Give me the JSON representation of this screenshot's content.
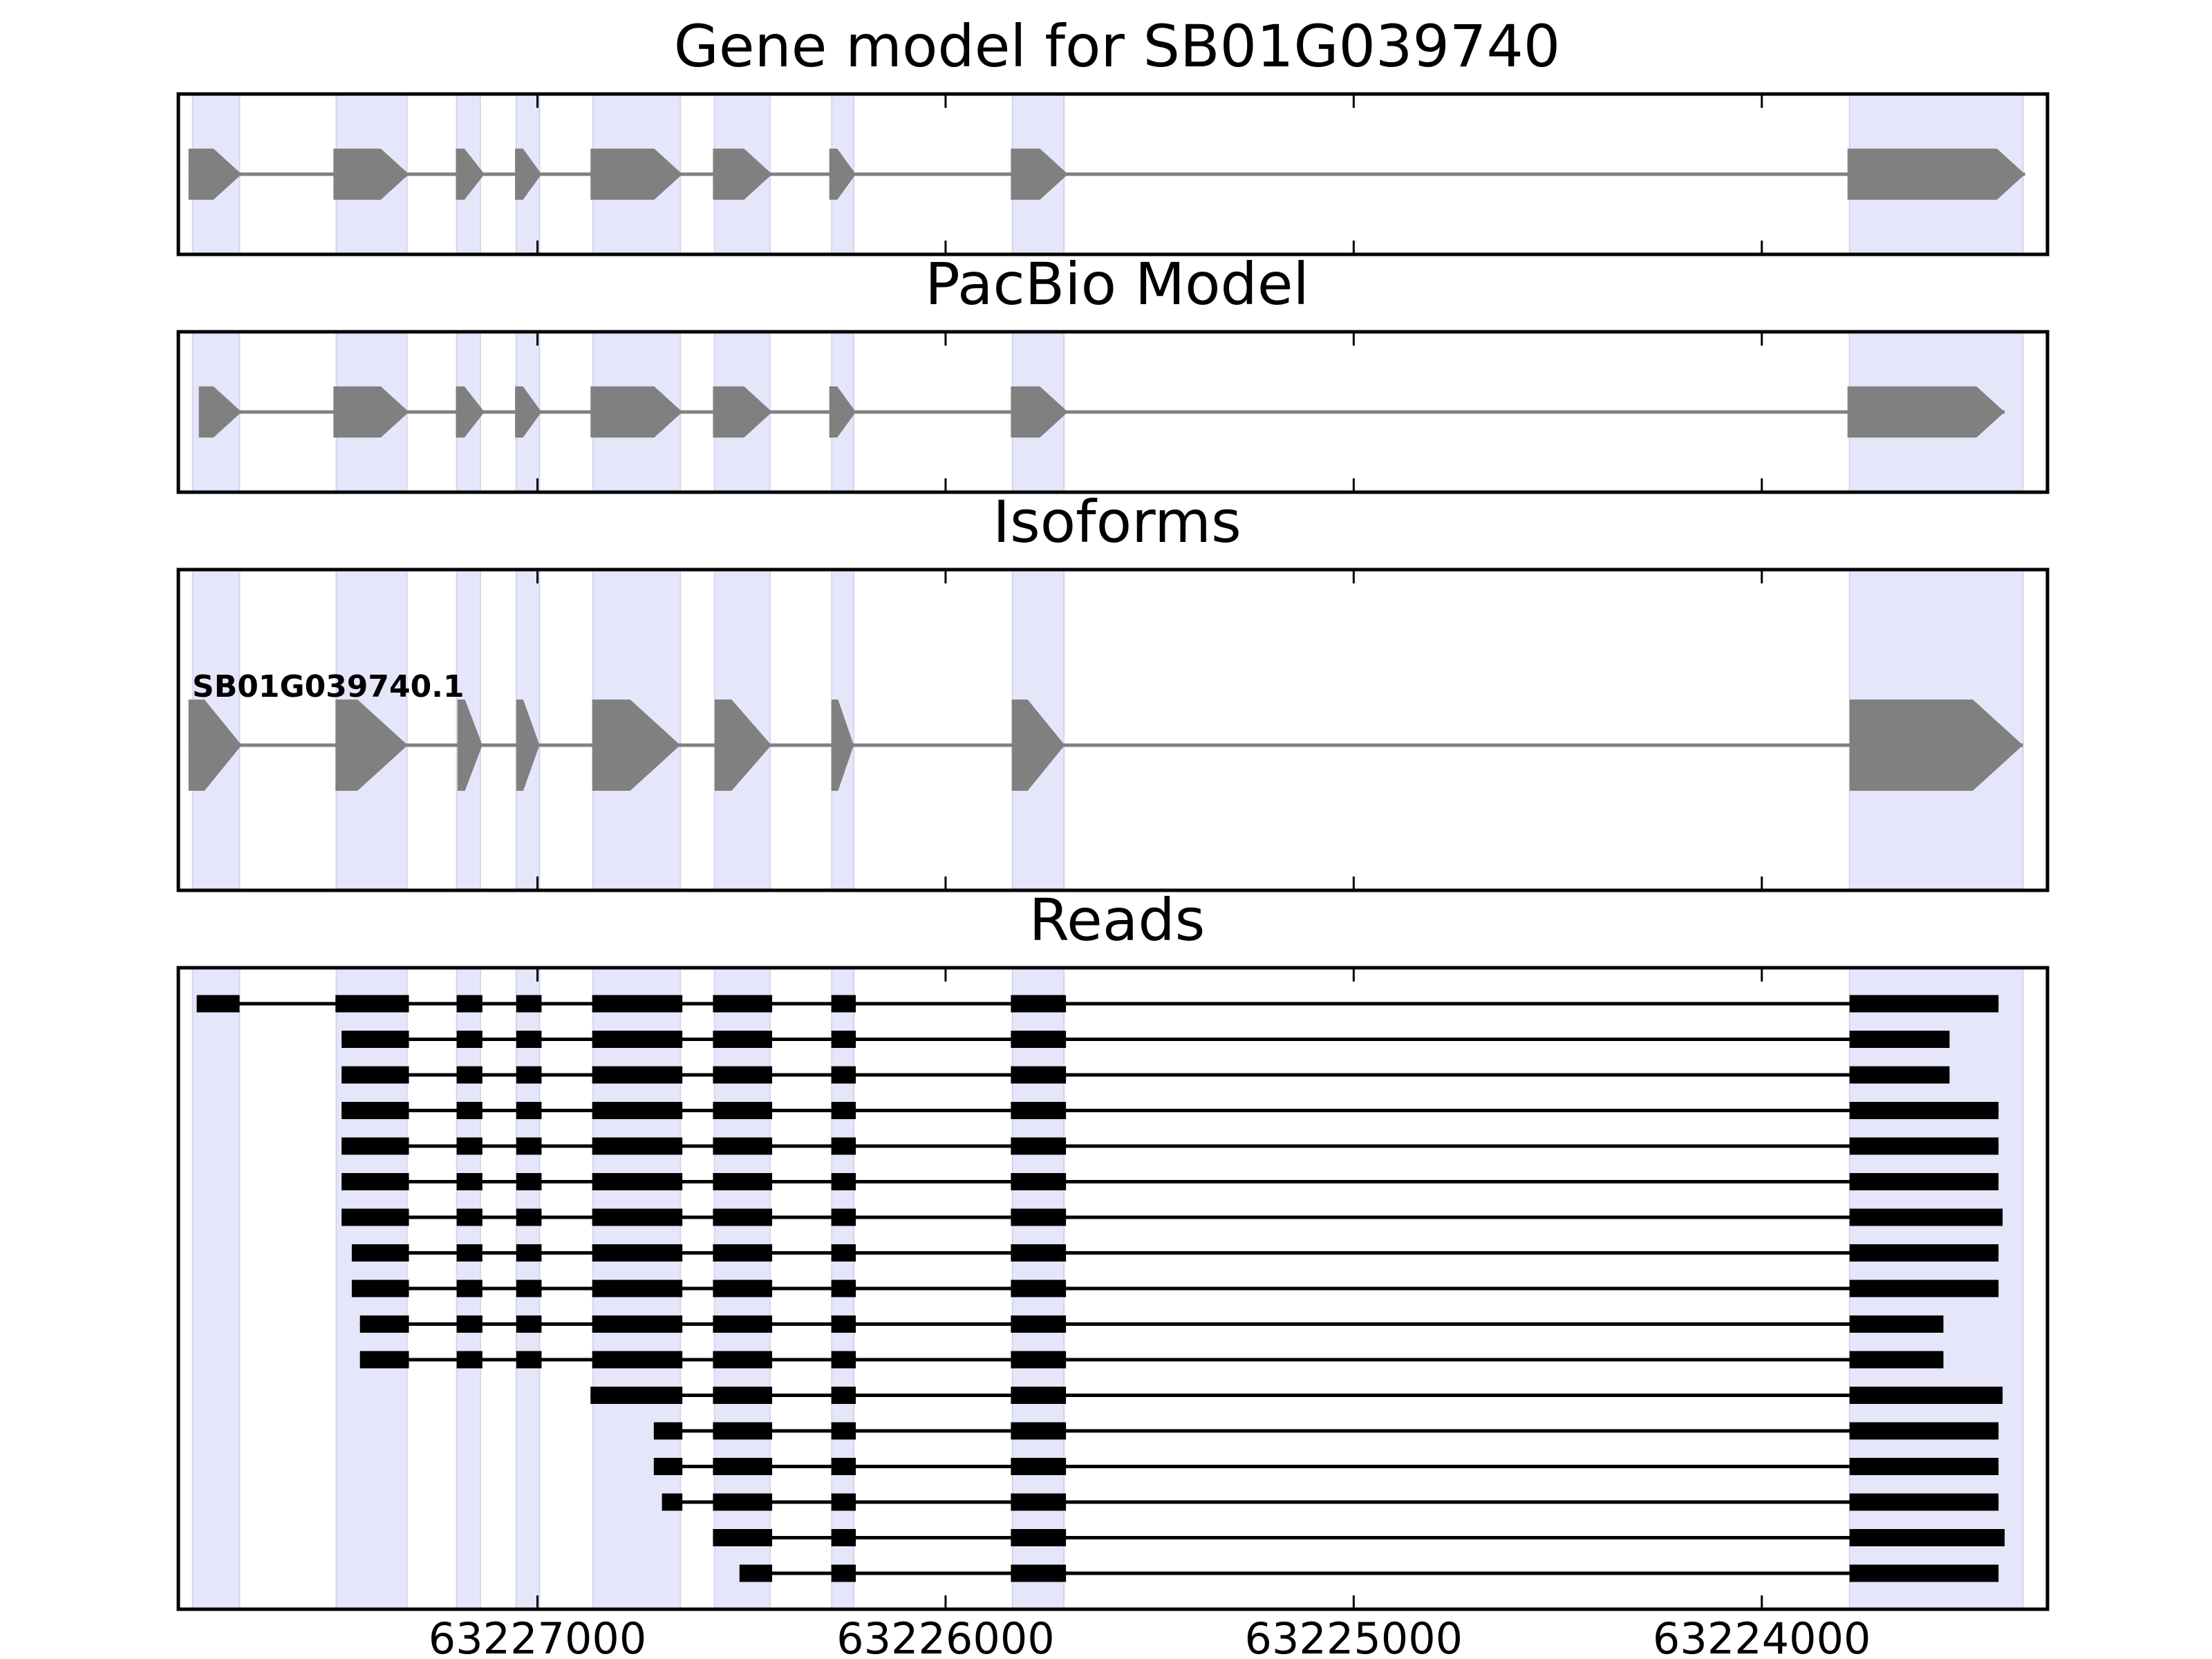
{
  "figure": {
    "panels": [
      {
        "id": "gene-model",
        "title": "Gene model for SB01G039740"
      },
      {
        "id": "pacbio-model",
        "title": "PacBio Model"
      },
      {
        "id": "isoforms",
        "title": "Isoforms",
        "isoform_label": "SB01G039740.1"
      },
      {
        "id": "reads",
        "title": "Reads"
      }
    ],
    "x_axis": {
      "reversed": true,
      "domain": [
        63227880,
        63223300
      ],
      "ticks": [
        {
          "value": 63227000,
          "label": "63227000"
        },
        {
          "value": 63226000,
          "label": "63226000"
        },
        {
          "value": 63225000,
          "label": "63225000"
        },
        {
          "value": 63224000,
          "label": "63224000"
        }
      ]
    },
    "colors": {
      "exon_shading": "#e6e6fb",
      "model_feature": "#808080",
      "read": "#000000",
      "frame": "#000000"
    },
    "exon_regions": [
      [
        63227845,
        63227730
      ],
      [
        63227493,
        63227320
      ],
      [
        63227198,
        63227140
      ],
      [
        63227052,
        63226995
      ],
      [
        63226864,
        63226650
      ],
      [
        63226566,
        63226430
      ],
      [
        63226279,
        63226225
      ],
      [
        63225836,
        63225710
      ],
      [
        63223785,
        63223360
      ]
    ],
    "gene_model_exons": [
      [
        63227855,
        63227725
      ],
      [
        63227500,
        63227315
      ],
      [
        63227200,
        63227130
      ],
      [
        63227055,
        63226990
      ],
      [
        63226870,
        63226645
      ],
      [
        63226570,
        63226425
      ],
      [
        63226285,
        63226220
      ],
      [
        63225840,
        63225700
      ],
      [
        63223790,
        63223355
      ]
    ],
    "pacbio_model_exons": [
      [
        63227830,
        63227725
      ],
      [
        63227500,
        63227315
      ],
      [
        63227200,
        63227130
      ],
      [
        63227055,
        63226990
      ],
      [
        63226870,
        63226645
      ],
      [
        63226570,
        63226425
      ],
      [
        63226285,
        63226220
      ],
      [
        63225840,
        63225700
      ],
      [
        63223790,
        63223405
      ]
    ],
    "isoform_exons": [
      [
        63227855,
        63227725
      ],
      [
        63227495,
        63227318
      ],
      [
        63227196,
        63227135
      ],
      [
        63227052,
        63226995
      ],
      [
        63226866,
        63226650
      ],
      [
        63226566,
        63226427
      ],
      [
        63226280,
        63226225
      ],
      [
        63225838,
        63225708
      ],
      [
        63223785,
        63223360
      ]
    ],
    "reads": [
      [
        [
          63227835,
          63227730
        ],
        [
          63227495,
          63227315
        ],
        [
          63227198,
          63227135
        ],
        [
          63227052,
          63226990
        ],
        [
          63226866,
          63226645
        ],
        [
          63226570,
          63226425
        ],
        [
          63226280,
          63226220
        ],
        [
          63225840,
          63225705
        ],
        [
          63223785,
          63223420
        ]
      ],
      [
        [
          63227480,
          63227315
        ],
        [
          63227198,
          63227135
        ],
        [
          63227052,
          63226990
        ],
        [
          63226866,
          63226645
        ],
        [
          63226570,
          63226425
        ],
        [
          63226280,
          63226220
        ],
        [
          63225840,
          63225705
        ],
        [
          63223785,
          63223540
        ]
      ],
      [
        [
          63227480,
          63227315
        ],
        [
          63227198,
          63227135
        ],
        [
          63227052,
          63226990
        ],
        [
          63226866,
          63226645
        ],
        [
          63226570,
          63226425
        ],
        [
          63226280,
          63226220
        ],
        [
          63225840,
          63225705
        ],
        [
          63223785,
          63223540
        ]
      ],
      [
        [
          63227480,
          63227315
        ],
        [
          63227198,
          63227135
        ],
        [
          63227052,
          63226990
        ],
        [
          63226866,
          63226645
        ],
        [
          63226570,
          63226425
        ],
        [
          63226280,
          63226220
        ],
        [
          63225840,
          63225705
        ],
        [
          63223785,
          63223420
        ]
      ],
      [
        [
          63227480,
          63227315
        ],
        [
          63227198,
          63227135
        ],
        [
          63227052,
          63226990
        ],
        [
          63226866,
          63226645
        ],
        [
          63226570,
          63226425
        ],
        [
          63226280,
          63226220
        ],
        [
          63225840,
          63225705
        ],
        [
          63223785,
          63223420
        ]
      ],
      [
        [
          63227480,
          63227315
        ],
        [
          63227198,
          63227135
        ],
        [
          63227052,
          63226990
        ],
        [
          63226866,
          63226645
        ],
        [
          63226570,
          63226425
        ],
        [
          63226280,
          63226220
        ],
        [
          63225840,
          63225705
        ],
        [
          63223785,
          63223420
        ]
      ],
      [
        [
          63227480,
          63227315
        ],
        [
          63227198,
          63227135
        ],
        [
          63227052,
          63226990
        ],
        [
          63226866,
          63226645
        ],
        [
          63226570,
          63226425
        ],
        [
          63226280,
          63226220
        ],
        [
          63225840,
          63225705
        ],
        [
          63223785,
          63223410
        ]
      ],
      [
        [
          63227455,
          63227315
        ],
        [
          63227198,
          63227135
        ],
        [
          63227052,
          63226990
        ],
        [
          63226866,
          63226645
        ],
        [
          63226570,
          63226425
        ],
        [
          63226280,
          63226220
        ],
        [
          63225840,
          63225705
        ],
        [
          63223785,
          63223420
        ]
      ],
      [
        [
          63227455,
          63227315
        ],
        [
          63227198,
          63227135
        ],
        [
          63227052,
          63226990
        ],
        [
          63226866,
          63226645
        ],
        [
          63226570,
          63226425
        ],
        [
          63226280,
          63226220
        ],
        [
          63225840,
          63225705
        ],
        [
          63223785,
          63223420
        ]
      ],
      [
        [
          63227435,
          63227315
        ],
        [
          63227198,
          63227135
        ],
        [
          63227052,
          63226990
        ],
        [
          63226866,
          63226645
        ],
        [
          63226570,
          63226425
        ],
        [
          63226280,
          63226220
        ],
        [
          63225840,
          63225705
        ],
        [
          63223785,
          63223555
        ]
      ],
      [
        [
          63227435,
          63227315
        ],
        [
          63227198,
          63227135
        ],
        [
          63227052,
          63226990
        ],
        [
          63226866,
          63226645
        ],
        [
          63226570,
          63226425
        ],
        [
          63226280,
          63226220
        ],
        [
          63225840,
          63225705
        ],
        [
          63223785,
          63223555
        ]
      ],
      [
        [
          63226870,
          63226645
        ],
        [
          63226570,
          63226425
        ],
        [
          63226280,
          63226220
        ],
        [
          63225840,
          63225705
        ],
        [
          63223785,
          63223410
        ]
      ],
      [
        [
          63226715,
          63226645
        ],
        [
          63226570,
          63226425
        ],
        [
          63226280,
          63226220
        ],
        [
          63225840,
          63225705
        ],
        [
          63223785,
          63223420
        ]
      ],
      [
        [
          63226715,
          63226645
        ],
        [
          63226570,
          63226425
        ],
        [
          63226280,
          63226220
        ],
        [
          63225840,
          63225705
        ],
        [
          63223785,
          63223420
        ]
      ],
      [
        [
          63226695,
          63226645
        ],
        [
          63226570,
          63226425
        ],
        [
          63226280,
          63226220
        ],
        [
          63225840,
          63225705
        ],
        [
          63223785,
          63223420
        ]
      ],
      [
        [
          63226570,
          63226425
        ],
        [
          63226280,
          63226220
        ],
        [
          63225840,
          63225705
        ],
        [
          63223785,
          63223405
        ]
      ],
      [
        [
          63226505,
          63226425
        ],
        [
          63226280,
          63226220
        ],
        [
          63225840,
          63225705
        ],
        [
          63223785,
          63223420
        ]
      ]
    ]
  }
}
